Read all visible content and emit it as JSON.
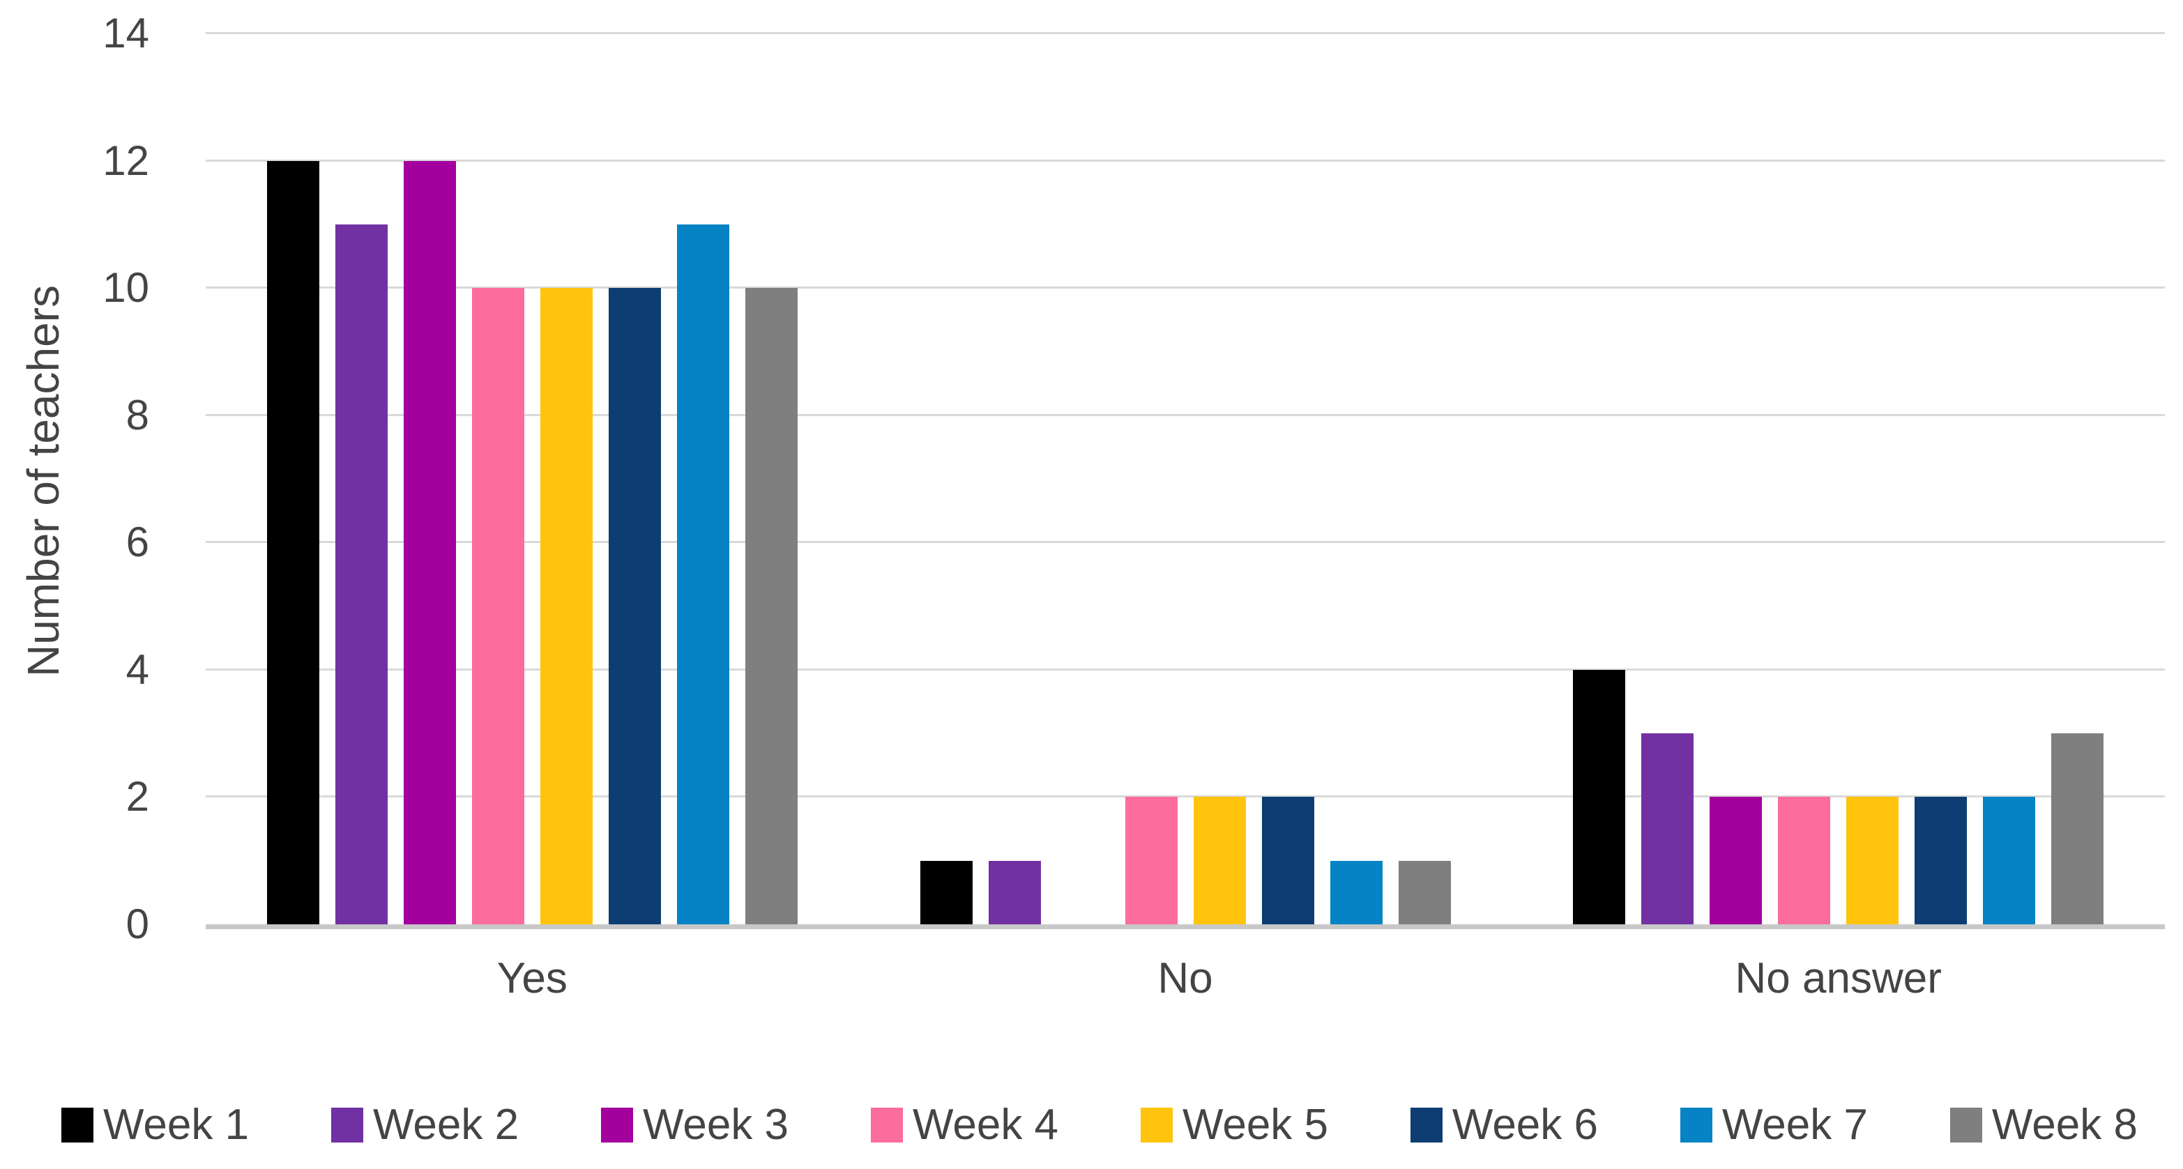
{
  "chart_data": {
    "type": "bar",
    "title": "",
    "ylabel": "Number of teachers",
    "xlabel": "",
    "categories": [
      "Yes",
      "No",
      "No answer"
    ],
    "series": [
      {
        "name": "Week 1",
        "color": "#000000",
        "values": [
          12,
          1,
          4
        ]
      },
      {
        "name": "Week 2",
        "color": "#7131A3",
        "values": [
          11,
          1,
          3
        ]
      },
      {
        "name": "Week 3",
        "color": "#A3009E",
        "values": [
          12,
          0,
          2
        ]
      },
      {
        "name": "Week 4",
        "color": "#FC6C9C",
        "values": [
          10,
          2,
          2
        ]
      },
      {
        "name": "Week 5",
        "color": "#FFC40B",
        "values": [
          10,
          2,
          2
        ]
      },
      {
        "name": "Week 6",
        "color": "#0D3D73",
        "values": [
          10,
          2,
          2
        ]
      },
      {
        "name": "Week 7",
        "color": "#0583C5",
        "values": [
          11,
          1,
          2
        ]
      },
      {
        "name": "Week 8",
        "color": "#7F7F7F",
        "values": [
          10,
          1,
          3
        ]
      }
    ],
    "ylim": [
      0,
      14
    ],
    "yticks": [
      0,
      2,
      4,
      6,
      8,
      10,
      12,
      14
    ],
    "grid": true,
    "legend_position": "bottom",
    "colors": {
      "grid": "#D9D9D9",
      "axis": "#C8C8C8",
      "text": "#444444"
    }
  }
}
